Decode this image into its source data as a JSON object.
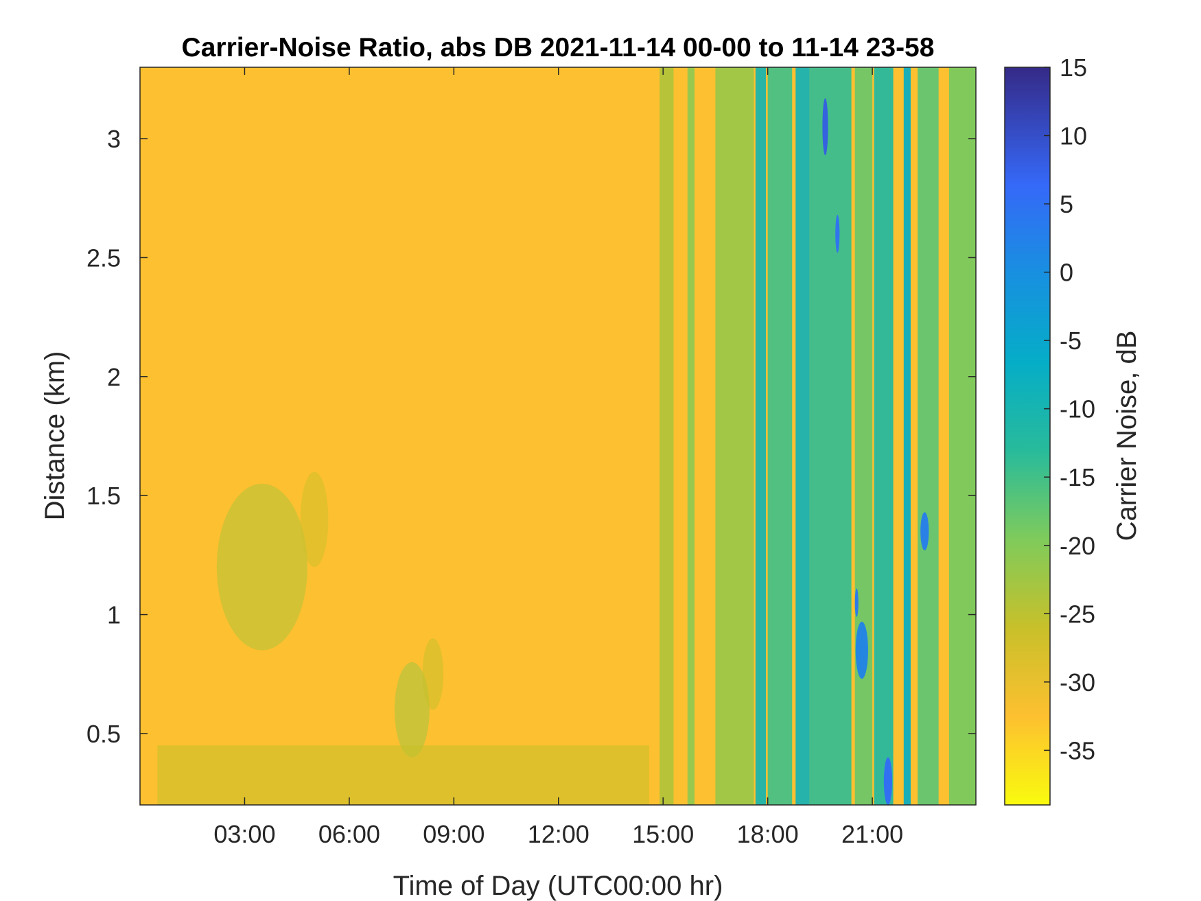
{
  "chart_data": {
    "type": "heatmap",
    "title": "Carrier-Noise Ratio, abs DB 2021-11-14 00-00 to 11-14 23-58",
    "xlabel": "Time of Day (UTC00:00 hr)",
    "ylabel": "Distance (km)",
    "x_range_hours": [
      0,
      23.97
    ],
    "y_range_km": [
      0.2,
      3.3
    ],
    "x_ticks": [
      {
        "hour": 3,
        "label": "03:00"
      },
      {
        "hour": 6,
        "label": "06:00"
      },
      {
        "hour": 9,
        "label": "09:00"
      },
      {
        "hour": 12,
        "label": "12:00"
      },
      {
        "hour": 15,
        "label": "15:00"
      },
      {
        "hour": 18,
        "label": "18:00"
      },
      {
        "hour": 21,
        "label": "21:00"
      }
    ],
    "y_ticks": [
      {
        "value": 0.5,
        "label": "0.5"
      },
      {
        "value": 1,
        "label": "1"
      },
      {
        "value": 1.5,
        "label": "1.5"
      },
      {
        "value": 2,
        "label": "2"
      },
      {
        "value": 2.5,
        "label": "2.5"
      },
      {
        "value": 3,
        "label": "3"
      }
    ],
    "colorbar": {
      "label": "Carrier Noise, dB",
      "range": [
        -39,
        15
      ],
      "colormap": "parula-reversed",
      "ticks": [
        {
          "value": 15,
          "label": "15"
        },
        {
          "value": 10,
          "label": "10"
        },
        {
          "value": 5,
          "label": "5"
        },
        {
          "value": 0,
          "label": "0"
        },
        {
          "value": -5,
          "label": "-5"
        },
        {
          "value": -10,
          "label": "-10"
        },
        {
          "value": -15,
          "label": "-15"
        },
        {
          "value": -20,
          "label": "-20"
        },
        {
          "value": -25,
          "label": "-25"
        },
        {
          "value": -30,
          "label": "-30"
        },
        {
          "value": -35,
          "label": "-35"
        }
      ]
    },
    "background_value_db": -31,
    "features": [
      {
        "kind": "blob",
        "x_hours": 3.5,
        "y_km": 1.2,
        "sx_hours": 1.3,
        "sy_km": 0.35,
        "value_db": -24
      },
      {
        "kind": "blob",
        "x_hours": 5.0,
        "y_km": 1.4,
        "sx_hours": 0.4,
        "sy_km": 0.2,
        "value_db": -27
      },
      {
        "kind": "blob",
        "x_hours": 7.8,
        "y_km": 0.6,
        "sx_hours": 0.5,
        "sy_km": 0.2,
        "value_db": -23
      },
      {
        "kind": "blob",
        "x_hours": 8.4,
        "y_km": 0.75,
        "sx_hours": 0.3,
        "sy_km": 0.15,
        "value_db": -26
      },
      {
        "kind": "layer",
        "x_start_hours": 0.5,
        "x_end_hours": 14.6,
        "y_top_km": 0.45,
        "y_bottom_km": 0.2,
        "value_db": -26
      },
      {
        "kind": "band",
        "x_start_hours": 14.9,
        "x_end_hours": 15.3,
        "value_db": -24
      },
      {
        "kind": "band",
        "x_start_hours": 15.7,
        "x_end_hours": 15.9,
        "value_db": -21
      },
      {
        "kind": "band",
        "x_start_hours": 16.5,
        "x_end_hours": 17.6,
        "value_db": -22
      },
      {
        "kind": "band",
        "x_start_hours": 17.65,
        "x_end_hours": 17.95,
        "value_db": -10
      },
      {
        "kind": "band",
        "x_start_hours": 18.0,
        "x_end_hours": 18.7,
        "value_db": -15
      },
      {
        "kind": "band",
        "x_start_hours": 18.8,
        "x_end_hours": 19.2,
        "value_db": -9
      },
      {
        "kind": "band",
        "x_start_hours": 19.2,
        "x_end_hours": 20.4,
        "value_db": -14
      },
      {
        "kind": "band",
        "x_start_hours": 20.5,
        "x_end_hours": 21.0,
        "value_db": -18
      },
      {
        "kind": "band",
        "x_start_hours": 21.05,
        "x_end_hours": 21.6,
        "value_db": -12
      },
      {
        "kind": "band",
        "x_start_hours": 21.9,
        "x_end_hours": 22.1,
        "value_db": -7
      },
      {
        "kind": "band",
        "x_start_hours": 22.3,
        "x_end_hours": 22.9,
        "value_db": -17
      },
      {
        "kind": "band",
        "x_start_hours": 23.2,
        "x_end_hours": 23.97,
        "value_db": -19
      },
      {
        "kind": "patch",
        "x_hours": 19.65,
        "y_km": 3.05,
        "sx_hours": 0.08,
        "sy_km": 0.12,
        "value_db": 8
      },
      {
        "kind": "patch",
        "x_hours": 20.0,
        "y_km": 2.6,
        "sx_hours": 0.06,
        "sy_km": 0.08,
        "value_db": 5
      },
      {
        "kind": "patch",
        "x_hours": 20.7,
        "y_km": 0.85,
        "sx_hours": 0.18,
        "sy_km": 0.12,
        "value_db": 2
      },
      {
        "kind": "patch",
        "x_hours": 20.55,
        "y_km": 1.05,
        "sx_hours": 0.05,
        "sy_km": 0.06,
        "value_db": 4
      },
      {
        "kind": "patch",
        "x_hours": 21.45,
        "y_km": 0.3,
        "sx_hours": 0.12,
        "sy_km": 0.1,
        "value_db": 6
      },
      {
        "kind": "patch",
        "x_hours": 22.5,
        "y_km": 1.35,
        "sx_hours": 0.12,
        "sy_km": 0.08,
        "value_db": 3
      }
    ]
  }
}
